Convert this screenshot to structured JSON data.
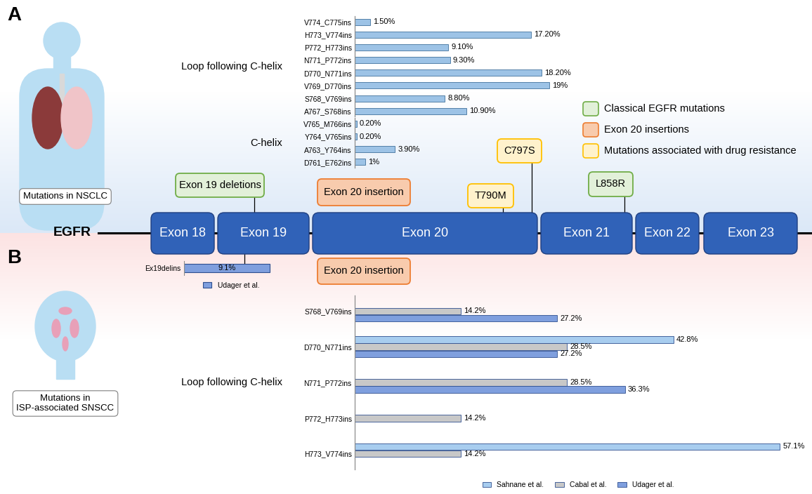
{
  "panel_labels": [
    "A",
    "B"
  ],
  "gene": {
    "name": "EGFR",
    "exons": [
      "Exon 18",
      "Exon 19",
      "Exon 20",
      "Exon 21",
      "Exon 22",
      "Exon 23"
    ]
  },
  "panels": [
    {
      "caption": [
        "Mutations in NSCLC"
      ]
    },
    {
      "caption": [
        "Mutations in",
        "ISP-associated SNSCC"
      ]
    }
  ],
  "mutation_legend": [
    {
      "label": "Classical EGFR mutations",
      "color": "#e2f0d9",
      "edge_color": "#70ad47"
    },
    {
      "label": "Exon 20 insertions",
      "color": "#f8cbad",
      "edge_color": "#ed7d31"
    },
    {
      "label": "Mutations associated with drug resistance",
      "color": "#fff2cc",
      "edge_color": "#ffc000"
    }
  ],
  "callouts": [
    {
      "text": "Exon 19 deletions",
      "kind": "Classical EGFR mutations"
    },
    {
      "text": "Exon 20 insertion",
      "kind": "Exon 20 insertions"
    },
    {
      "text": "T790M",
      "kind": "Mutations associated with drug resistance"
    },
    {
      "text": "C797S",
      "kind": "Mutations associated with drug resistance"
    },
    {
      "text": "L858R",
      "kind": "Classical EGFR mutations"
    },
    {
      "text": "Exon 20 insertion",
      "kind": "Exon 20 insertions"
    }
  ],
  "chart_data": [
    {
      "type": "bar",
      "orientation": "horizontal",
      "categories": [
        "V774_C775ins",
        "H773_V774ins",
        "P772_H773ins",
        "N771_P772ins",
        "D770_N771ins",
        "V769_D770ins",
        "S768_V769ins",
        "A767_S768ins",
        "V765_M766ins",
        "Y764_V765ins",
        "A763_Y764ins",
        "D761_E762ins"
      ],
      "values": [
        1.5,
        17.2,
        9.1,
        9.3,
        18.2,
        19,
        8.8,
        10.9,
        0.2,
        0.2,
        3.9,
        1
      ],
      "value_labels": [
        "1.50%",
        "17.20%",
        "9.10%",
        "9.30%",
        "18.20%",
        "19%",
        "8.80%",
        "10.90%",
        "0.20%",
        "0.20%",
        "3.90%",
        "1%"
      ],
      "data_labels": true,
      "color": "#9dc3e6",
      "xlim": [
        0,
        25
      ],
      "tick_labels": "y",
      "groups": [
        {
          "label": "Loop following C-helix",
          "first": "V774_C775ins",
          "last": "A767_S768ins"
        },
        {
          "label": "C-helix",
          "first": "V765_M766ins",
          "last": "D761_E762ins"
        }
      ]
    },
    {
      "type": "bar",
      "orientation": "horizontal",
      "categories": [
        "Ex19delins"
      ],
      "series": [
        {
          "name": "Udager et al.",
          "color": "#7f9fde",
          "values": [
            9.1
          ],
          "value_labels": [
            "9.1%"
          ]
        }
      ],
      "data_labels": true,
      "xlim": [
        0,
        10
      ],
      "tick_labels": "y",
      "legend": "bottom"
    },
    {
      "type": "bar",
      "orientation": "horizontal",
      "categories": [
        "S768_V769ins",
        "D770_N771ins",
        "N771_P772ins",
        "P772_H773ins",
        "H773_V774ins"
      ],
      "series": [
        {
          "name": "Sahnane et al.",
          "color": "#a8cdef",
          "values": [
            null,
            42.8,
            null,
            null,
            57.1
          ],
          "value_labels": [
            null,
            "42.8%",
            null,
            null,
            "57.1%"
          ]
        },
        {
          "name": "Cabal et al.",
          "color": "#c8c8c8",
          "values": [
            14.2,
            28.5,
            28.5,
            14.2,
            14.2
          ],
          "value_labels": [
            "14.2%",
            "28.5%",
            "28.5%",
            "14.2%",
            "14.2%"
          ]
        },
        {
          "name": "Udager et al.",
          "color": "#7f9fde",
          "values": [
            27.2,
            27.2,
            36.3,
            null,
            null
          ],
          "value_labels": [
            "27.2%",
            "27.2%",
            "36.3%",
            null,
            null
          ]
        }
      ],
      "data_labels": true,
      "xlim": [
        0,
        60
      ],
      "tick_labels": "y",
      "legend": "bottom",
      "groups": [
        {
          "label": "Loop following C-helix",
          "first": "S768_V769ins",
          "last": "H773_V774ins"
        }
      ]
    }
  ]
}
